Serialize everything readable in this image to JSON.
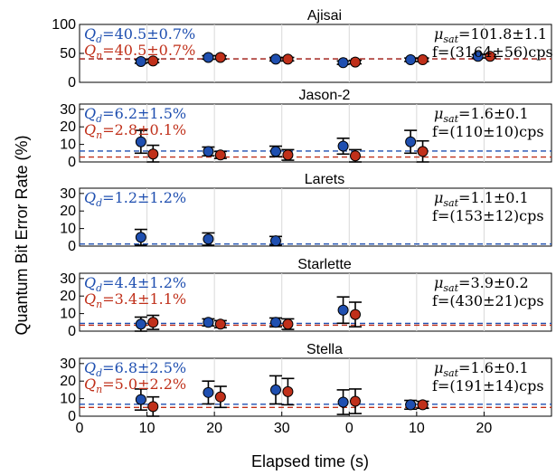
{
  "chart_data": {
    "type": "scatter",
    "ylabel": "Quantum Bit Error Rate (%)",
    "xlabel": "Elapsed time (s)",
    "x_tick_labels": [
      "0",
      "10",
      "20",
      "30",
      "0",
      "10",
      "20"
    ],
    "x_positions": [
      10,
      20,
      30,
      40,
      50,
      60
    ],
    "colors": {
      "d": "#1f4fb0",
      "n": "#c0301a",
      "grid": "#d9d9d9"
    },
    "panels": [
      {
        "title": "Ajisai",
        "ylim": [
          0,
          100
        ],
        "yticks": [
          "0",
          "50",
          "100"
        ],
        "annotations": {
          "qd": "Q_d=40.5±0.7%",
          "qn": "Q_n=40.5±0.7%",
          "mu": "μ_sat=101.8±1.1",
          "f": "f=(3164±56)cps"
        },
        "series": [
          {
            "name": "Q_d",
            "mean": 40.5,
            "values": [
              36,
              43,
              40,
              34,
              39,
              45
            ],
            "err": [
              3,
              3,
              3,
              3,
              3,
              3
            ]
          },
          {
            "name": "Q_n",
            "mean": 40.5,
            "values": [
              37,
              43,
              40,
              35,
              39,
              45
            ],
            "err": [
              3,
              3,
              3,
              3,
              3,
              3
            ]
          }
        ]
      },
      {
        "title": "Jason-2",
        "ylim": [
          0,
          33
        ],
        "yticks": [
          "0",
          "10",
          "20",
          "30"
        ],
        "annotations": {
          "qd": "Q_d=6.2±1.5%",
          "qn": "Q_n=2.8±0.1%",
          "mu": "μ_sat=1.6±0.1",
          "f": "f=(110±10)cps"
        },
        "series": [
          {
            "name": "Q_d",
            "mean": 6.2,
            "values": [
              11.5,
              6,
              6,
              9,
              11.5
            ],
            "err": [
              6.5,
              2.5,
              3,
              4.5,
              6.5
            ],
            "xi": [
              0,
              1,
              2,
              3,
              4
            ]
          },
          {
            "name": "Q_n",
            "mean": 2.8,
            "values": [
              4.5,
              4,
              4,
              3.5,
              6
            ],
            "err": [
              5,
              2,
              3,
              3.5,
              6
            ],
            "xi": [
              0,
              1,
              2,
              3,
              4
            ]
          }
        ]
      },
      {
        "title": "Larets",
        "ylim": [
          0,
          33
        ],
        "yticks": [
          "0",
          "10",
          "20",
          "30"
        ],
        "annotations": {
          "qd": "Q_d=1.2±1.2%",
          "mu": "μ_sat=1.1±0.1",
          "f": "f=(153±12)cps"
        },
        "series": [
          {
            "name": "Q_d",
            "mean": 1.2,
            "values": [
              5,
              4,
              3
            ],
            "err": [
              4.5,
              3.5,
              2.5
            ],
            "xi": [
              0,
              1,
              2
            ]
          }
        ]
      },
      {
        "title": "Starlette",
        "ylim": [
          0,
          33
        ],
        "yticks": [
          "0",
          "10",
          "20",
          "30"
        ],
        "annotations": {
          "qd": "Q_d=4.4±1.2%",
          "qn": "Q_n=3.4±1.1%",
          "mu": "μ_sat=3.9±0.2",
          "f": "f=(430±21)cps"
        },
        "series": [
          {
            "name": "Q_d",
            "mean": 4.4,
            "values": [
              4,
              5,
              5,
              12
            ],
            "err": [
              4,
              2,
              2.5,
              7.5
            ],
            "xi": [
              0,
              1,
              2,
              3
            ]
          },
          {
            "name": "Q_n",
            "mean": 3.4,
            "values": [
              5,
              4,
              4,
              9.5
            ],
            "err": [
              4,
              2,
              3,
              7
            ],
            "xi": [
              0,
              1,
              2,
              3
            ]
          }
        ]
      },
      {
        "title": "Stella",
        "ylim": [
          0,
          33
        ],
        "yticks": [
          "0",
          "10",
          "20",
          "30"
        ],
        "annotations": {
          "qd": "Q_d=6.8±2.5%",
          "qn": "Q_n=5.0±2.2%",
          "mu": "μ_sat=1.6±0.1",
          "f": "f=(191±14)cps"
        },
        "series": [
          {
            "name": "Q_d",
            "mean": 6.8,
            "values": [
              9.5,
              13.5,
              15,
              8,
              6.5
            ],
            "err": [
              6,
              6.5,
              8,
              7,
              2.5
            ],
            "xi": [
              0,
              1,
              2,
              3,
              4
            ]
          },
          {
            "name": "Q_n",
            "mean": 5.0,
            "values": [
              5.5,
              11,
              14,
              8.5,
              6.5
            ],
            "err": [
              5.5,
              6,
              7.5,
              7,
              2
            ],
            "xi": [
              0,
              1,
              2,
              3,
              4
            ]
          }
        ]
      }
    ]
  }
}
